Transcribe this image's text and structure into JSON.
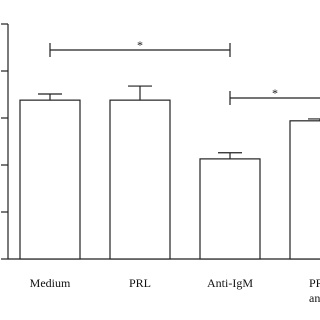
{
  "chart_data": {
    "type": "bar",
    "categories": [
      [
        "Medium"
      ],
      [
        "PRL"
      ],
      [
        "Anti-IgM"
      ],
      [
        "PRL",
        "anti-"
      ]
    ],
    "values": [
      3.38,
      3.38,
      2.13,
      2.94
    ],
    "errors": [
      0.13,
      0.3,
      0.13,
      0.04
    ],
    "color": "#ffffff",
    "ylim": [
      0,
      5
    ],
    "yticks": [
      0,
      1,
      2,
      3,
      4,
      5
    ],
    "annotations": [
      "*",
      "*"
    ]
  }
}
